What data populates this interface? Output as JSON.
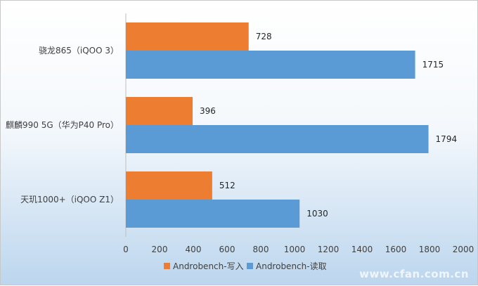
{
  "chart_data": {
    "type": "bar",
    "orientation": "horizontal",
    "categories": [
      "骁龙865（iQOO 3）",
      "麒麟990 5G（华为P40 Pro）",
      "天玑1000+（iQOO Z1）"
    ],
    "series": [
      {
        "name": "Androbench-写入",
        "values": [
          728,
          396,
          512
        ],
        "color": "#ed7d31"
      },
      {
        "name": "Androbench-读取",
        "values": [
          1715,
          1794,
          1030
        ],
        "color": "#5b9bd5"
      }
    ],
    "xlim": [
      0,
      2000
    ],
    "xticks": [
      "0",
      "200",
      "400",
      "600",
      "800",
      "1000",
      "1200",
      "1400",
      "1600",
      "1800",
      "2000"
    ],
    "grid": false,
    "legend": "bottom"
  },
  "watermark": "www.cfan.com.cn"
}
